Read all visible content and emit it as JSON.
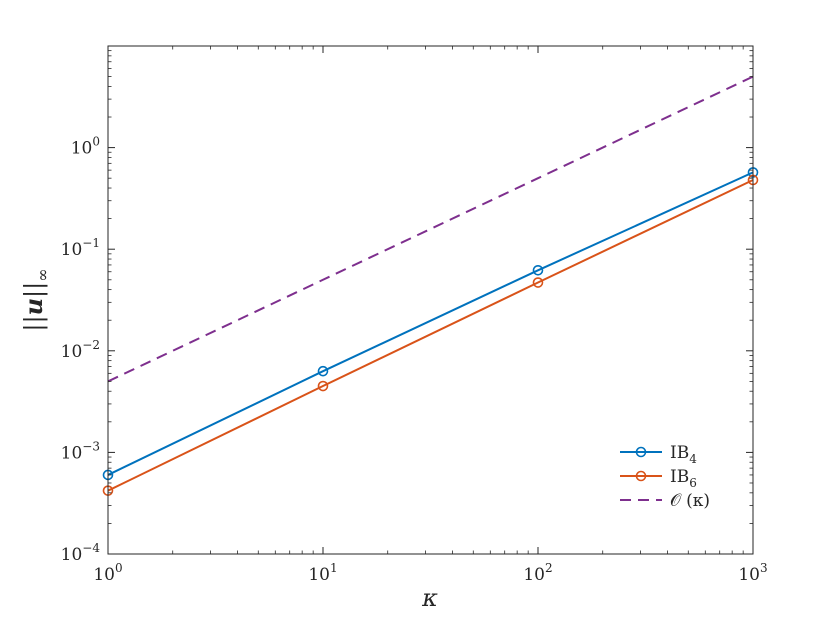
{
  "chart_data": {
    "type": "line",
    "xscale": "log",
    "yscale": "log",
    "xlim": [
      1,
      1000
    ],
    "ylim": [
      0.0001,
      10
    ],
    "x": [
      1,
      10,
      100,
      1000
    ],
    "xlabel": "κ",
    "ylabel": "||u||∞",
    "xticks": [
      {
        "value": 1,
        "base": "10",
        "exp": "0"
      },
      {
        "value": 10,
        "base": "10",
        "exp": "1"
      },
      {
        "value": 100,
        "base": "10",
        "exp": "2"
      },
      {
        "value": 1000,
        "base": "10",
        "exp": "3"
      }
    ],
    "yticks": [
      {
        "value": 0.0001,
        "base": "10",
        "exp": "−4"
      },
      {
        "value": 0.001,
        "base": "10",
        "exp": "−3"
      },
      {
        "value": 0.01,
        "base": "10",
        "exp": "−2"
      },
      {
        "value": 0.1,
        "base": "10",
        "exp": "−1"
      },
      {
        "value": 1,
        "base": "10",
        "exp": "0"
      }
    ],
    "grid": false,
    "legend_position": "bottom-right",
    "series": [
      {
        "name": "IB",
        "subscript": "4",
        "color": "#0072BD",
        "style": "solid",
        "marker": "circle",
        "values": [
          0.0006,
          0.0063,
          0.062,
          0.57
        ]
      },
      {
        "name": "IB",
        "subscript": "6",
        "color": "#D95319",
        "style": "solid",
        "marker": "circle",
        "values": [
          0.00042,
          0.0045,
          0.047,
          0.48
        ]
      },
      {
        "name": "𝒪 (κ)",
        "subscript": "",
        "color": "#7E2F8E",
        "style": "dashed",
        "marker": "none",
        "values": [
          0.005,
          0.05,
          0.5,
          5
        ]
      }
    ]
  }
}
